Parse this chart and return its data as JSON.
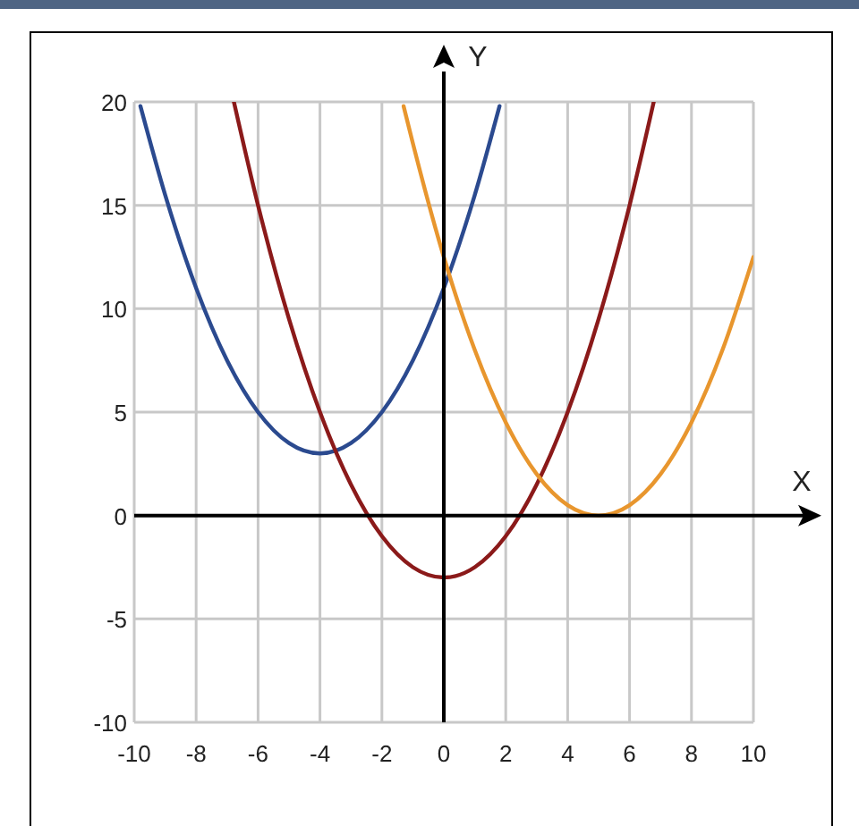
{
  "chart_data": {
    "type": "line",
    "xlabel": "X",
    "ylabel": "Y",
    "xlim": [
      -10,
      10
    ],
    "ylim": [
      -10,
      20
    ],
    "xticks": [
      -10,
      -8,
      -6,
      -4,
      -2,
      0,
      2,
      4,
      6,
      8,
      10
    ],
    "yticks": [
      -10,
      -5,
      0,
      5,
      10,
      15,
      20
    ],
    "grid": true,
    "series": [
      {
        "color": "#2b4a8f",
        "x": [
          -9.8,
          -9,
          -8,
          -7,
          -6,
          -5,
          -4,
          -3,
          -2,
          -1,
          0,
          1,
          1.8
        ],
        "values": [
          19.8,
          15.5,
          11,
          7.5,
          5,
          3.5,
          3,
          3.5,
          5,
          7.5,
          11,
          15.5,
          19.8
        ]
      },
      {
        "color": "#8b1a1a",
        "x": [
          -6.78,
          -6,
          -5,
          -4,
          -3,
          -2,
          -1,
          0,
          1,
          2,
          3,
          4,
          5,
          6,
          6.78
        ],
        "values": [
          20,
          15,
          9.5,
          5,
          1.5,
          -1,
          -2.5,
          -3,
          -2.5,
          -1,
          1.5,
          5,
          9.5,
          15,
          20
        ]
      },
      {
        "color": "#e8962e",
        "x": [
          -1.3,
          -1,
          0,
          1,
          2,
          3,
          4,
          5,
          6,
          7,
          8,
          9,
          10
        ],
        "values": [
          19.8,
          18,
          12.5,
          8,
          4.5,
          2,
          0.5,
          0,
          0.5,
          2,
          4.5,
          8,
          12.5
        ]
      }
    ]
  }
}
